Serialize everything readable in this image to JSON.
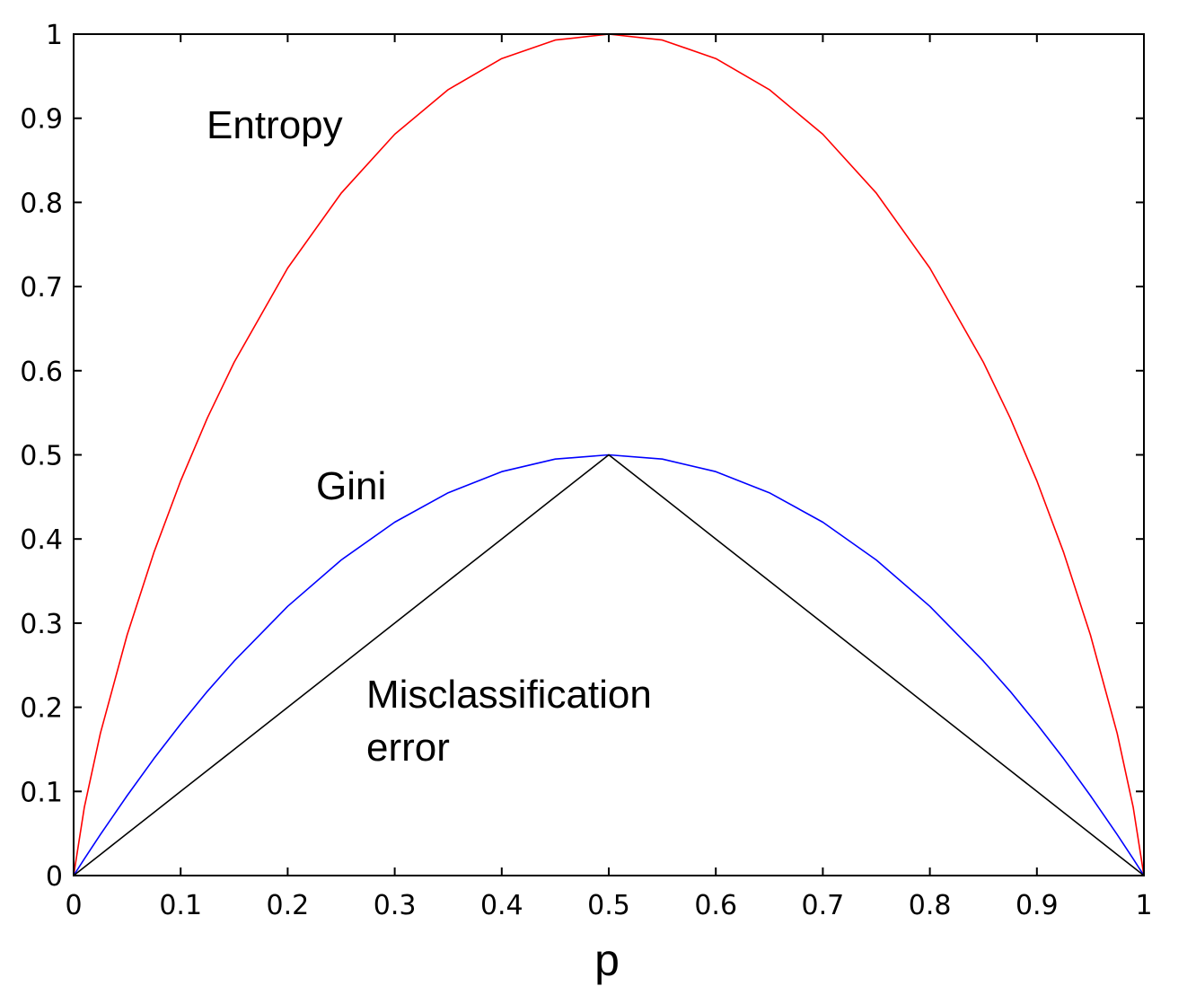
{
  "chart_data": {
    "type": "line",
    "xlabel": "p",
    "ylabel": "",
    "xlim": [
      0,
      1
    ],
    "ylim": [
      0,
      1
    ],
    "x_ticks": [
      "0",
      "0.1",
      "0.2",
      "0.3",
      "0.4",
      "0.5",
      "0.6",
      "0.7",
      "0.8",
      "0.9",
      "1"
    ],
    "y_ticks": [
      "0",
      "0.1",
      "0.2",
      "0.3",
      "0.4",
      "0.5",
      "0.6",
      "0.7",
      "0.8",
      "0.9",
      "1"
    ],
    "grid": false,
    "x": [
      0,
      0.01,
      0.025,
      0.05,
      0.075,
      0.1,
      0.125,
      0.15,
      0.2,
      0.25,
      0.3,
      0.35,
      0.4,
      0.45,
      0.5,
      0.55,
      0.6,
      0.65,
      0.7,
      0.75,
      0.8,
      0.85,
      0.875,
      0.9,
      0.925,
      0.95,
      0.975,
      0.99,
      1
    ],
    "series": [
      {
        "name": "Entropy",
        "color": "#ff0000",
        "values": [
          0,
          0.081,
          0.169,
          0.286,
          0.384,
          0.469,
          0.544,
          0.61,
          0.722,
          0.811,
          0.881,
          0.934,
          0.971,
          0.993,
          1.0,
          0.993,
          0.971,
          0.934,
          0.881,
          0.811,
          0.722,
          0.61,
          0.544,
          0.469,
          0.384,
          0.286,
          0.169,
          0.081,
          0
        ]
      },
      {
        "name": "Gini",
        "color": "#0000ff",
        "values": [
          0,
          0.0198,
          0.0488,
          0.095,
          0.139,
          0.18,
          0.219,
          0.255,
          0.32,
          0.375,
          0.42,
          0.455,
          0.48,
          0.495,
          0.5,
          0.495,
          0.48,
          0.455,
          0.42,
          0.375,
          0.32,
          0.255,
          0.219,
          0.18,
          0.139,
          0.095,
          0.0488,
          0.0198,
          0
        ]
      },
      {
        "name": "Misclassification error",
        "color": "#000000",
        "values": [
          0,
          0.01,
          0.025,
          0.05,
          0.075,
          0.1,
          0.125,
          0.15,
          0.2,
          0.25,
          0.3,
          0.35,
          0.4,
          0.45,
          0.5,
          0.45,
          0.4,
          0.35,
          0.3,
          0.25,
          0.2,
          0.15,
          0.125,
          0.1,
          0.075,
          0.05,
          0.025,
          0.01,
          0
        ]
      }
    ],
    "annotations": {
      "entropy": "Entropy",
      "gini": "Gini",
      "misclass_line1": "Misclassification",
      "misclass_line2": "error"
    }
  }
}
